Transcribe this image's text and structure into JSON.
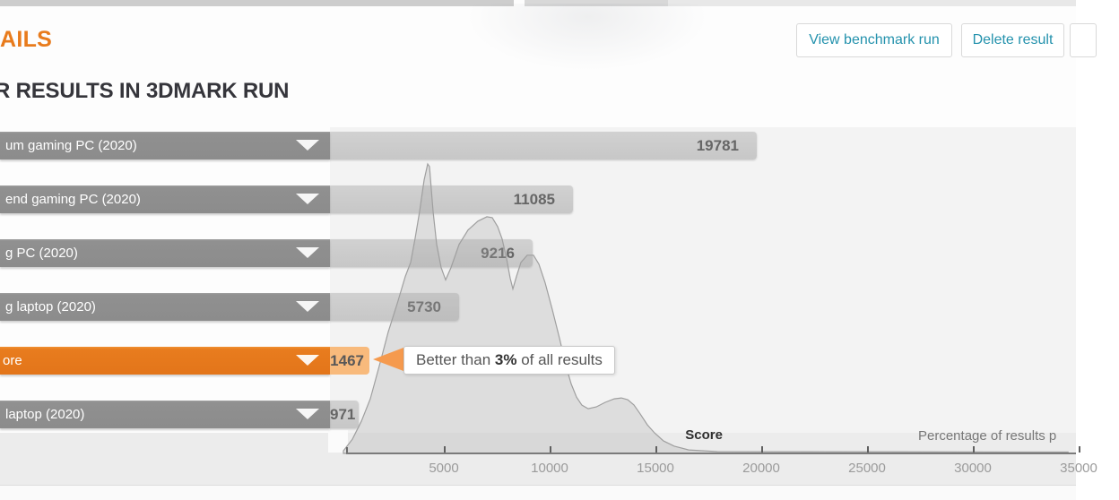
{
  "header": {
    "details_heading": "AILS",
    "buttons": [
      {
        "label": "View benchmark run"
      },
      {
        "label": "Delete result"
      }
    ]
  },
  "section": {
    "heading": "R RESULTS IN 3DMARK RUN"
  },
  "chart_data": {
    "type": "bar",
    "subtype": "horizontal bars with score distribution area curve",
    "bars": [
      {
        "category": "um gaming PC (2020)",
        "value": 19781,
        "highlight": false
      },
      {
        "category": "end gaming PC (2020)",
        "value": 11085,
        "highlight": false
      },
      {
        "category": "g PC (2020)",
        "value": 9216,
        "highlight": false
      },
      {
        "category": "g laptop (2020)",
        "value": 5730,
        "highlight": false
      },
      {
        "category": "ore",
        "value": 1467,
        "highlight": true
      },
      {
        "category": "laptop (2020)",
        "value": 971,
        "highlight": false
      }
    ],
    "tooltip": {
      "prefix": "Better than ",
      "bold": "3%",
      "suffix": " of all results"
    },
    "x_axis": {
      "label": "Score",
      "secondary_label": "Percentage of results p",
      "ticks": [
        5000,
        10000,
        15000,
        20000,
        25000,
        30000,
        35000
      ],
      "range": [
        0,
        35000
      ]
    },
    "distribution_curve": {
      "units": "score vs percent-of-peak",
      "points": [
        [
          254,
          0.6
        ],
        [
          678,
          4.6
        ],
        [
          1100,
          10.8
        ],
        [
          1525,
          18.6
        ],
        [
          1950,
          30
        ],
        [
          2373,
          41.8
        ],
        [
          2800,
          51.7
        ],
        [
          3178,
          61
        ],
        [
          3432,
          65.9
        ],
        [
          3644,
          74.3
        ],
        [
          3856,
          83.6
        ],
        [
          4068,
          94.4
        ],
        [
          4237,
          100
        ],
        [
          4322,
          99.1
        ],
        [
          4492,
          83.6
        ],
        [
          4661,
          72.1
        ],
        [
          4873,
          64.1
        ],
        [
          5085,
          59.8
        ],
        [
          5339,
          64.1
        ],
        [
          5720,
          72.1
        ],
        [
          6144,
          77.1
        ],
        [
          6610,
          80.2
        ],
        [
          7034,
          81.7
        ],
        [
          7288,
          81.4
        ],
        [
          7542,
          78.3
        ],
        [
          7754,
          74
        ],
        [
          7966,
          67.2
        ],
        [
          8136,
          60.4
        ],
        [
          8263,
          56.7
        ],
        [
          8432,
          61
        ],
        [
          8644,
          65.9
        ],
        [
          8941,
          68.4
        ],
        [
          9237,
          68.4
        ],
        [
          9492,
          65.3
        ],
        [
          9788,
          58.8
        ],
        [
          10127,
          49.5
        ],
        [
          10466,
          39.6
        ],
        [
          10763,
          30.3
        ],
        [
          11017,
          23.8
        ],
        [
          11271,
          19.2
        ],
        [
          11525,
          16.4
        ],
        [
          11822,
          15.2
        ],
        [
          12203,
          15.8
        ],
        [
          12627,
          17.4
        ],
        [
          13051,
          18.6
        ],
        [
          13390,
          18.9
        ],
        [
          13686,
          18.3
        ],
        [
          13983,
          16.5
        ],
        [
          14280,
          13.4
        ],
        [
          14619,
          9.6
        ],
        [
          14958,
          6.8
        ],
        [
          15381,
          4
        ],
        [
          15890,
          2.2
        ],
        [
          16568,
          0.9
        ],
        [
          17924,
          0.3
        ],
        [
          34500,
          0.15
        ]
      ]
    },
    "colors": {
      "bar": "#cbcbcb",
      "row": "#8c8c8c",
      "highlight_row": "#e87c1e",
      "highlight_value_bg": "#f8ba7c",
      "tooltip_arrow": "#f59a4e",
      "button_text": "#2492ad",
      "details_heading": "#e87b1c"
    }
  }
}
